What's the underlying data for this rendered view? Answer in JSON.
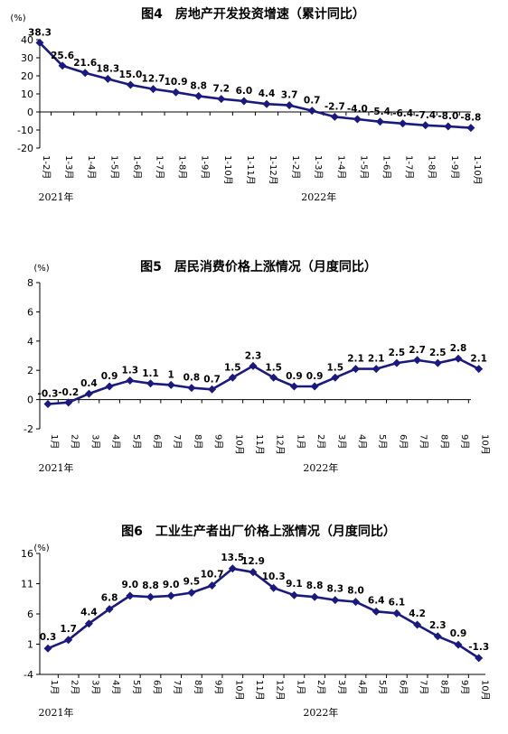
{
  "chart_data": [
    {
      "type": "line",
      "title": "图4　房地产开发投资增速（累计同比）",
      "unit": "(%)",
      "categories": [
        "1-2月",
        "1-3月",
        "1-4月",
        "1-5月",
        "1-6月",
        "1-7月",
        "1-8月",
        "1-9月",
        "1-10月",
        "1-11月",
        "1-12月",
        "1-2月",
        "1-3月",
        "1-4月",
        "1-5月",
        "1-6月",
        "1-7月",
        "1-8月",
        "1-9月",
        "1-10月"
      ],
      "groups": [
        {
          "label": "2021年",
          "start": 0
        },
        {
          "label": "2022年",
          "start": 11
        }
      ],
      "values": [
        38.3,
        25.6,
        21.6,
        18.3,
        15.0,
        12.7,
        10.9,
        8.8,
        7.2,
        6.0,
        4.4,
        3.7,
        0.7,
        -2.7,
        -4.0,
        -5.4,
        -6.4,
        -7.4,
        -8.0,
        -8.8
      ],
      "labels": [
        "38.3",
        "25.6",
        "21.6",
        "18.3",
        "15.0",
        "12.7",
        "10.9",
        "8.8",
        "7.2",
        "6.0",
        "4.4",
        "3.7",
        "0.7",
        "-2.7",
        "-4.0",
        "-5.4",
        "-6.4",
        "-7.4",
        "-8.0",
        "-8.8"
      ],
      "yticks": [
        40,
        30,
        20,
        10,
        0,
        -10,
        -20
      ],
      "ylim": [
        -20,
        40
      ],
      "color": "#1a1a7e"
    },
    {
      "type": "line",
      "title": "图5　居民消费价格上涨情况（月度同比）",
      "unit": "(%)",
      "categories": [
        "1月",
        "2月",
        "3月",
        "4月",
        "5月",
        "6月",
        "7月",
        "8月",
        "9月",
        "10月",
        "11月",
        "12月",
        "1月",
        "2月",
        "3月",
        "4月",
        "5月",
        "6月",
        "7月",
        "8月",
        "9月",
        "10月"
      ],
      "groups": [
        {
          "label": "2021年",
          "start": 0
        },
        {
          "label": "2022年",
          "start": 12
        }
      ],
      "values": [
        -0.3,
        -0.2,
        0.4,
        0.9,
        1.3,
        1.1,
        1.0,
        0.8,
        0.7,
        1.5,
        2.3,
        1.5,
        0.9,
        0.9,
        1.5,
        2.1,
        2.1,
        2.5,
        2.7,
        2.5,
        2.8,
        2.1
      ],
      "labels": [
        "-0.3",
        "-0.2",
        "0.4",
        "0.9",
        "1.3",
        "1.1",
        "1",
        "0.8",
        "0.7",
        "1.5",
        "2.3",
        "1.5",
        "0.9",
        "0.9",
        "1.5",
        "2.1",
        "2.1",
        "2.5",
        "2.7",
        "2.5",
        "2.8",
        "2.1"
      ],
      "yticks": [
        8,
        6,
        4,
        2,
        0,
        -2
      ],
      "ylim": [
        -2,
        8
      ],
      "color": "#1a1a7e"
    },
    {
      "type": "line",
      "title": "图6　工业生产者出厂价格上涨情况（月度同比）",
      "unit": "(%)",
      "categories": [
        "1月",
        "2月",
        "3月",
        "4月",
        "5月",
        "6月",
        "7月",
        "8月",
        "9月",
        "10月",
        "11月",
        "12月",
        "1月",
        "2月",
        "3月",
        "4月",
        "5月",
        "6月",
        "7月",
        "8月",
        "9月",
        "10月"
      ],
      "groups": [
        {
          "label": "2021年",
          "start": 0
        },
        {
          "label": "2022年",
          "start": 12
        }
      ],
      "values": [
        0.3,
        1.7,
        4.4,
        6.8,
        9.0,
        8.8,
        9.0,
        9.5,
        10.7,
        13.5,
        12.9,
        10.3,
        9.1,
        8.8,
        8.3,
        8.0,
        6.4,
        6.1,
        4.2,
        2.3,
        0.9,
        -1.3
      ],
      "labels": [
        "0.3",
        "1.7",
        "4.4",
        "6.8",
        "9.0",
        "8.8",
        "9.0",
        "9.5",
        "10.7",
        "13.5",
        "12.9",
        "10.3",
        "9.1",
        "8.8",
        "8.3",
        "8.0",
        "6.4",
        "6.1",
        "4.2",
        "2.3",
        "0.9",
        "-1.3"
      ],
      "yticks": [
        16,
        11,
        6,
        1,
        -4
      ],
      "ylim": [
        -4,
        16
      ],
      "color": "#1a1a7e"
    }
  ]
}
